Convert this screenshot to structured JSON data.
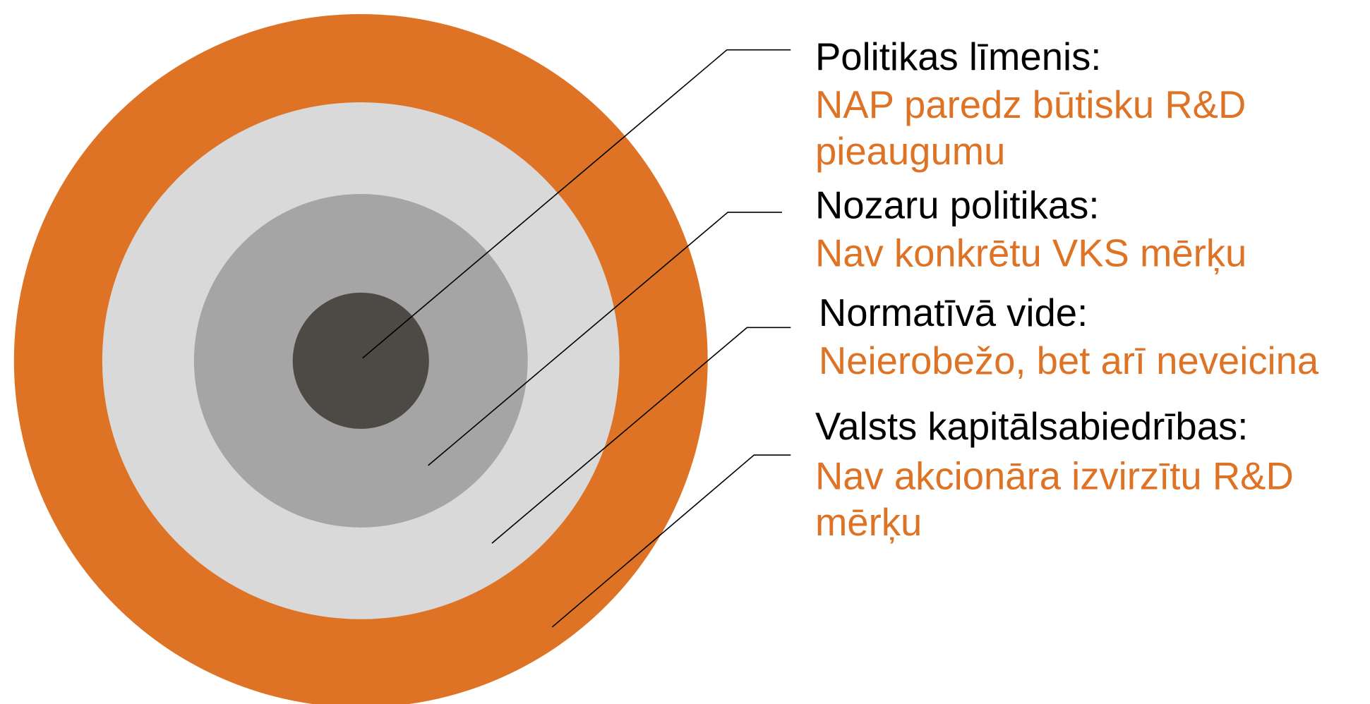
{
  "items": [
    {
      "title": "Politikas līmenis:",
      "description": [
        "NAP paredz būtisku R&D",
        "pieaugumu"
      ]
    },
    {
      "title": "Nozaru politikas:",
      "description": [
        "Nav konkrētu VKS mērķu"
      ]
    },
    {
      "title": "Normatīvā vide:",
      "description": [
        "Neierobežo, bet arī neveicina"
      ]
    },
    {
      "title": "Valsts kapitālsabiedrības:",
      "description": [
        "Nav akcionāra izvirzītu R&D",
        "mērķu"
      ]
    }
  ]
}
